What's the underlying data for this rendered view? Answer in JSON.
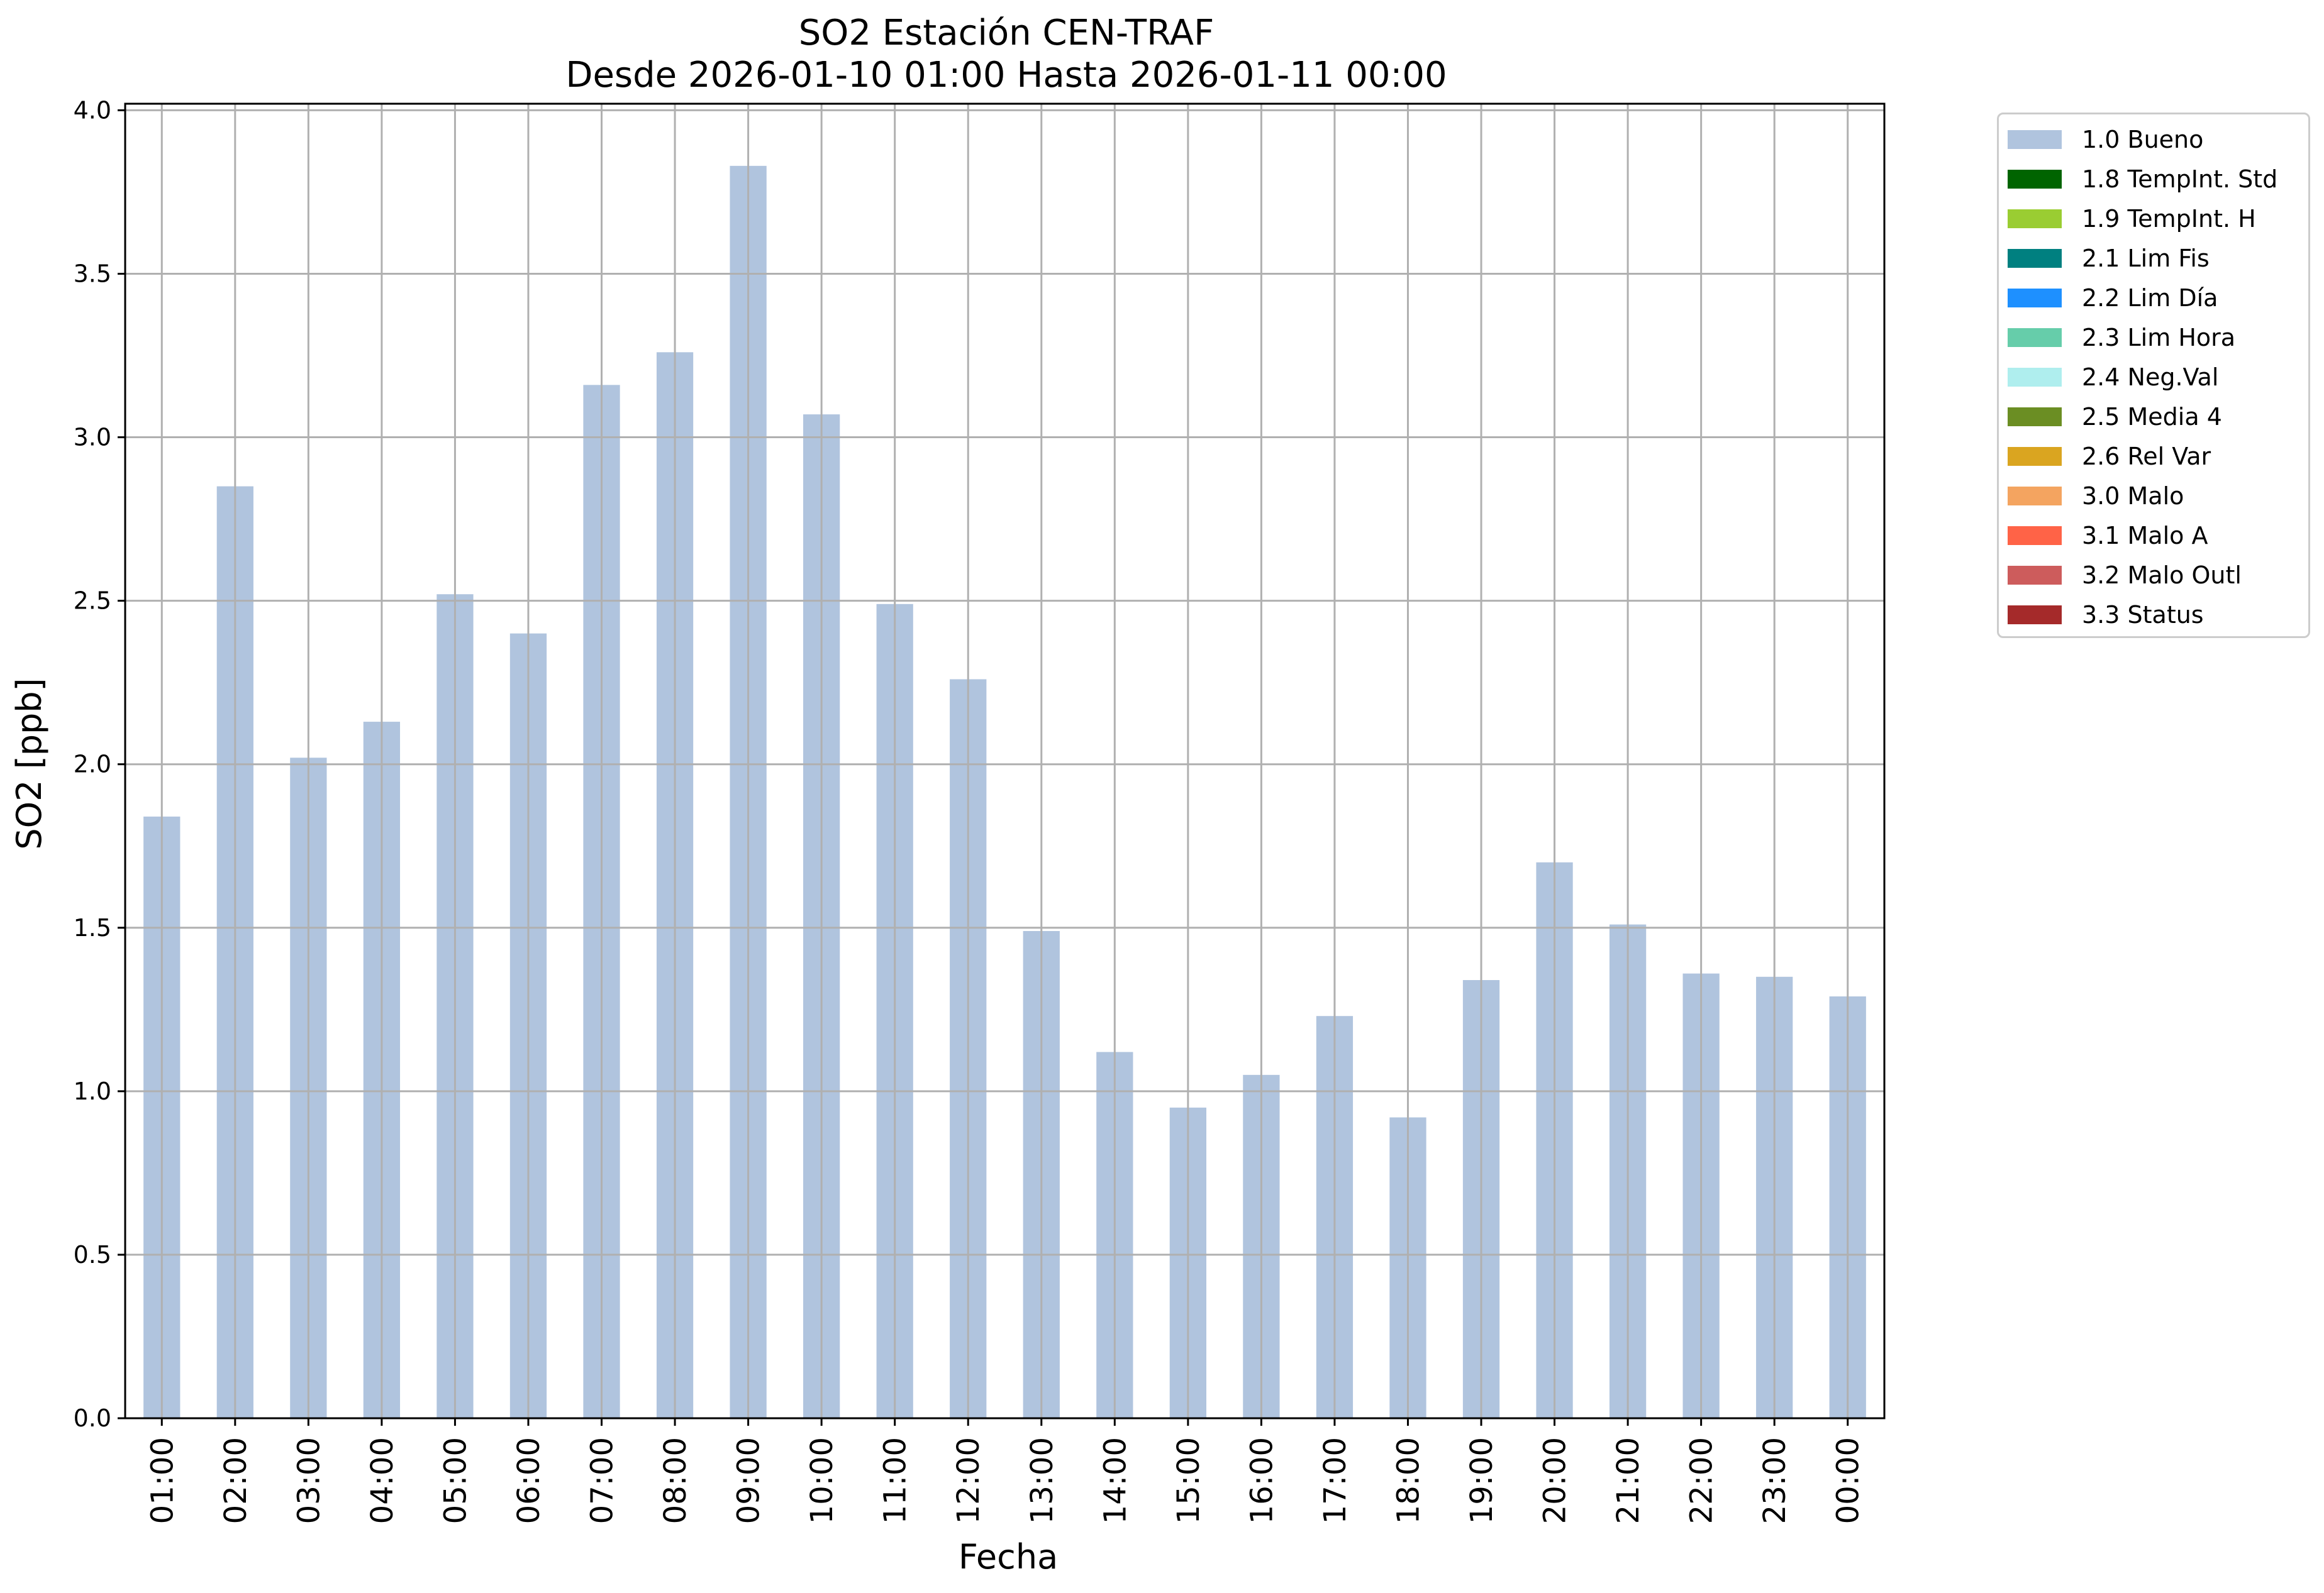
{
  "chart_data": {
    "type": "bar",
    "title": "SO2 Estación CEN-TRAF",
    "subtitle": "Desde 2026-01-10 01:00 Hasta 2026-01-11 00:00",
    "xlabel": "Fecha",
    "ylabel": "SO2 [ppb]",
    "ylim": [
      0,
      4.02
    ],
    "yticks": [
      "0.0",
      "0.5",
      "1.0",
      "1.5",
      "2.0",
      "2.5",
      "3.0",
      "3.5",
      "4.0"
    ],
    "grid": true,
    "legend_position": "outside-right",
    "categories": [
      "01:00",
      "02:00",
      "03:00",
      "04:00",
      "05:00",
      "06:00",
      "07:00",
      "08:00",
      "09:00",
      "10:00",
      "11:00",
      "12:00",
      "13:00",
      "14:00",
      "15:00",
      "16:00",
      "17:00",
      "18:00",
      "19:00",
      "20:00",
      "21:00",
      "22:00",
      "23:00",
      "00:00"
    ],
    "series": [
      {
        "name": "1.0 Bueno",
        "color": "#b0c4de",
        "values": [
          1.84,
          2.85,
          2.02,
          2.13,
          2.52,
          2.4,
          3.16,
          3.26,
          3.83,
          3.07,
          2.49,
          2.26,
          1.49,
          1.12,
          0.95,
          1.05,
          1.23,
          0.92,
          1.34,
          1.7,
          1.51,
          1.36,
          1.35,
          1.29
        ]
      }
    ],
    "legend": [
      {
        "label": "1.0 Bueno",
        "color": "#b0c4de"
      },
      {
        "label": "1.8 TempInt. Std",
        "color": "#006400"
      },
      {
        "label": "1.9 TempInt. H",
        "color": "#9acd32"
      },
      {
        "label": "2.1 Lim Fis",
        "color": "#008080"
      },
      {
        "label": "2.2 Lim Día",
        "color": "#1e90ff"
      },
      {
        "label": "2.3 Lim Hora",
        "color": "#66cdaa"
      },
      {
        "label": "2.4 Neg.Val",
        "color": "#afeeee"
      },
      {
        "label": "2.5 Media 4",
        "color": "#6b8e23"
      },
      {
        "label": "2.6 Rel Var",
        "color": "#daa520"
      },
      {
        "label": "3.0 Malo",
        "color": "#f4a460"
      },
      {
        "label": "3.1 Malo A",
        "color": "#ff6347"
      },
      {
        "label": "3.2 Malo Outl",
        "color": "#cd5c5c"
      },
      {
        "label": "3.3 Status",
        "color": "#a52a2a"
      }
    ]
  }
}
